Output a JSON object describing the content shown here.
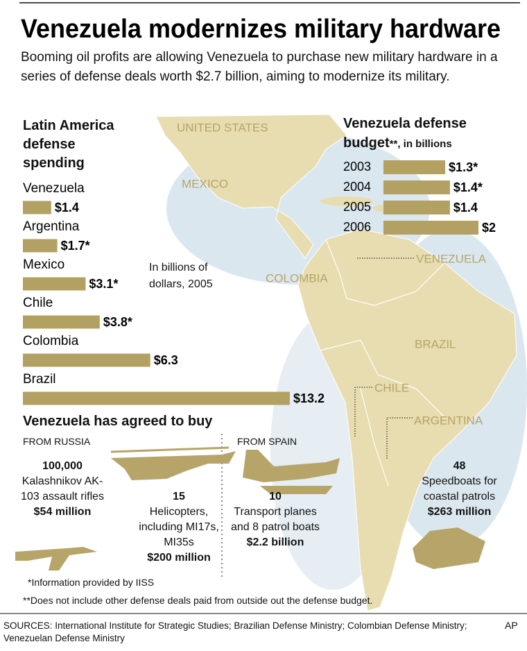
{
  "header": {
    "title": "Venezuela modernizes military hardware",
    "subtitle": "Booming oil profits are allowing Venezuela to purchase new military hardware in a series of defense deals worth $2.7 billion, aiming to modernize its military."
  },
  "chart_data": [
    {
      "type": "bar",
      "orientation": "horizontal",
      "title": "Latin America defense spending",
      "note": "In billions of dollars, 2005",
      "categories": [
        "Venezuela",
        "Argentina",
        "Mexico",
        "Chile",
        "Colombia",
        "Brazil"
      ],
      "values": [
        1.4,
        1.7,
        3.1,
        3.8,
        6.3,
        13.2
      ],
      "value_labels": [
        "$1.4",
        "$1.7*",
        "$3.1*",
        "$3.8*",
        "$6.3",
        "$13.2"
      ],
      "color": "#b3a063"
    },
    {
      "type": "bar",
      "orientation": "horizontal",
      "title": "Venezuela defense budget",
      "title_suffix": "**, in billions",
      "categories": [
        "2003",
        "2004",
        "2005",
        "2006"
      ],
      "values": [
        1.3,
        1.4,
        1.4,
        2
      ],
      "value_labels": [
        "$1.3*",
        "$1.4*",
        "$1.4",
        "$2"
      ],
      "color": "#b3a063"
    }
  ],
  "map": {
    "labels": [
      "UNITED STATES",
      "MEXICO",
      "VENEZUELA",
      "COLOMBIA",
      "BRAZIL",
      "CHILE",
      "ARGENTINA"
    ]
  },
  "purchases": {
    "title": "Venezuela has agreed to buy",
    "sources": [
      "FROM RUSSIA",
      "FROM SPAIN"
    ],
    "items": [
      {
        "quantity": "100,000",
        "description": "Kalashnikov AK-103 assault rifles",
        "price": "$54 million"
      },
      {
        "quantity": "15",
        "description": "Helicopters, including MI17s, MI35s",
        "price": "$200 million"
      },
      {
        "quantity": "10",
        "description": "Transport planes and 8 patrol boats",
        "price": "$2.2 billion"
      },
      {
        "quantity": "48",
        "description": "Speedboats for coastal patrols",
        "price": "$263 million"
      }
    ]
  },
  "footnotes": [
    "*Information provided by IISS",
    "**Does not include other defense deals paid from outside out the defense budget."
  ],
  "footer": {
    "sources": "SOURCES: International Institute for Strategic Studies; Brazilian Defense Ministry; Colombian Defense Ministry; Venezuelan Defense Ministry",
    "credit": "AP"
  }
}
